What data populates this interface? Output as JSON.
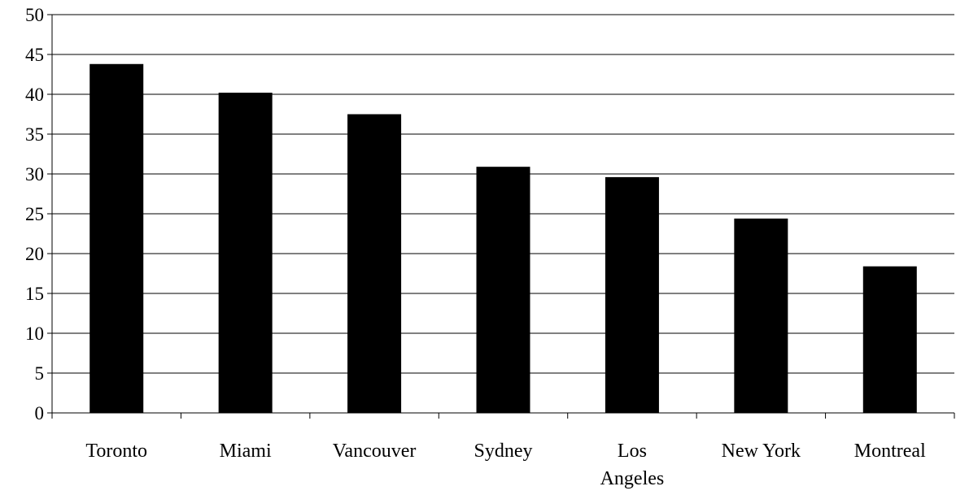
{
  "chart_data": {
    "type": "bar",
    "title": "",
    "xlabel": "",
    "ylabel": "",
    "categories": [
      "Toronto",
      "Miami",
      "Vancouver",
      "Sydney",
      "Los Angeles",
      "New York",
      "Montreal"
    ],
    "values": [
      43.8,
      40.2,
      37.5,
      30.9,
      29.6,
      24.4,
      18.4
    ],
    "ylim": [
      0,
      50
    ],
    "yticks": [
      "0",
      "5",
      "10",
      "15",
      "20",
      "25",
      "30",
      "35",
      "40",
      "45",
      "50"
    ],
    "grid": true,
    "legend": "none",
    "bar_color": "#000000",
    "grid_color": "#000000"
  }
}
